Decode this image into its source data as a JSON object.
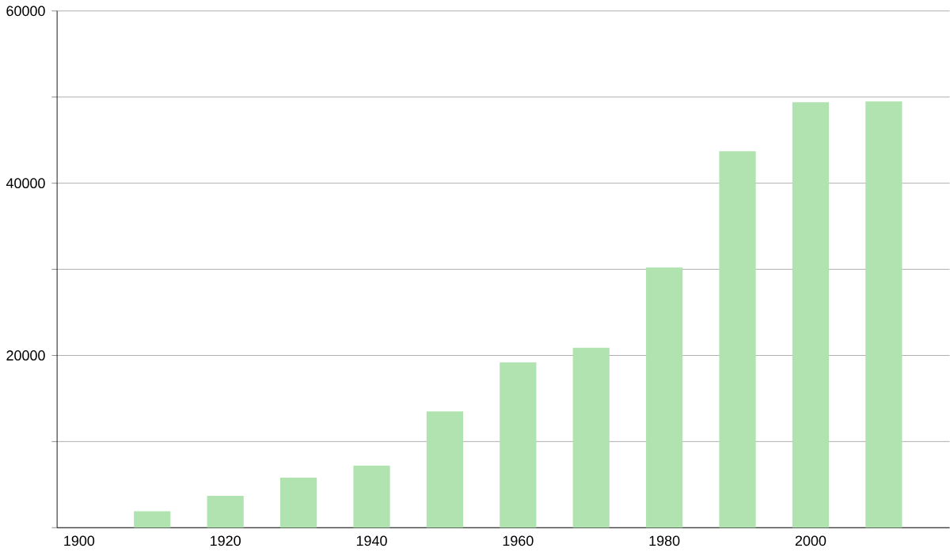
{
  "chart_data": {
    "type": "bar",
    "x": [
      1910,
      1920,
      1930,
      1940,
      1950,
      1960,
      1970,
      1980,
      1990,
      2000,
      2010
    ],
    "values": [
      1900,
      3700,
      5800,
      7200,
      13500,
      19200,
      20900,
      30200,
      43700,
      49400,
      49500
    ],
    "color": "#b0e3b0",
    "xlim": [
      1897,
      2019
    ],
    "xticks": [
      1900,
      1920,
      1940,
      1960,
      1980,
      2000
    ],
    "ylim": [
      0,
      60000
    ],
    "yticks": [
      {
        "value": 0,
        "label": null
      },
      {
        "value": 10000,
        "label": null
      },
      20000,
      {
        "value": 30000,
        "label": null
      },
      40000,
      {
        "value": 50000,
        "label": null
      },
      60000
    ],
    "grid": "y"
  }
}
